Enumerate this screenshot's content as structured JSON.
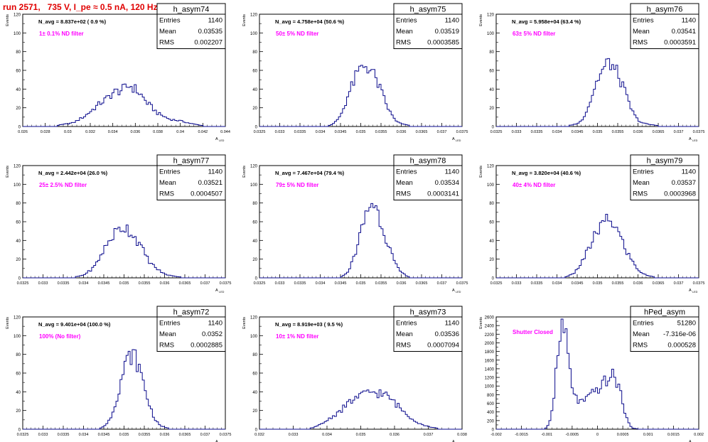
{
  "page": {
    "title": "run 2571,   735 V, I_pe ≈ 0.5 nA, 120 Hz"
  },
  "stat_labels": {
    "entries": "Entries",
    "mean": "Mean",
    "rms": "RMS"
  },
  "y_axis_label": "Events",
  "x_axis_label": "A",
  "x_axis_sub": "LED",
  "colors": {
    "histogram": "#0a0a8c",
    "annotation": "#ff00ff",
    "title": "#e00000",
    "frame": "#000000"
  },
  "chart_data": [
    {
      "type": "bar",
      "name": "h_asym74",
      "navg": "N_avg = 8.837e+02 ( 0.9 %)",
      "filter": "1± 0.1% ND filter",
      "stats": {
        "entries": "1140",
        "mean": "0.03535",
        "rms": "0.002207"
      },
      "xlim": [
        0.026,
        0.044
      ],
      "ylim": [
        0,
        120
      ],
      "xticks": [
        "0.026",
        "0.028",
        "0.03",
        "0.032",
        "0.034",
        "0.036",
        "0.038",
        "0.04",
        "0.042",
        "0.044"
      ],
      "yticks": [
        "0",
        "20",
        "40",
        "60",
        "80",
        "100",
        "120"
      ],
      "peak": {
        "center": 0.0355,
        "sigma": 0.0022,
        "height": 43
      },
      "shape": [
        [
          0.029,
          1
        ],
        [
          0.0305,
          4
        ],
        [
          0.0315,
          11
        ],
        [
          0.032,
          16
        ],
        [
          0.0325,
          21
        ],
        [
          0.033,
          26
        ],
        [
          0.0335,
          30
        ],
        [
          0.034,
          36
        ],
        [
          0.0345,
          38
        ],
        [
          0.035,
          40
        ],
        [
          0.0355,
          44
        ],
        [
          0.036,
          40
        ],
        [
          0.0365,
          34
        ],
        [
          0.037,
          26
        ],
        [
          0.0375,
          20
        ],
        [
          0.038,
          14
        ],
        [
          0.0385,
          11
        ],
        [
          0.039,
          8
        ],
        [
          0.04,
          6
        ],
        [
          0.041,
          3
        ],
        [
          0.042,
          1
        ]
      ]
    },
    {
      "type": "bar",
      "name": "h_asym75",
      "navg": "N_avg = 4.758e+04 (50.6 %)",
      "filter": "50± 5% ND filter",
      "stats": {
        "entries": "1140",
        "mean": "0.03519",
        "rms": "0.0003585"
      },
      "xlim": [
        0.0325,
        0.0375
      ],
      "ylim": [
        0,
        120
      ],
      "xticks": [
        "0.0325",
        "0.033",
        "0.0335",
        "0.034",
        "0.0345",
        "0.035",
        "0.0355",
        "0.036",
        "0.0365",
        "0.037",
        "0.0375"
      ],
      "yticks": [
        "0",
        "20",
        "40",
        "60",
        "80",
        "100",
        "120"
      ],
      "shape": [
        [
          0.0342,
          1
        ],
        [
          0.0343,
          2
        ],
        [
          0.0344,
          6
        ],
        [
          0.0345,
          12
        ],
        [
          0.0346,
          22
        ],
        [
          0.0347,
          35
        ],
        [
          0.0348,
          45
        ],
        [
          0.0349,
          55
        ],
        [
          0.035,
          62
        ],
        [
          0.0351,
          66
        ],
        [
          0.0352,
          63
        ],
        [
          0.0353,
          57
        ],
        [
          0.0354,
          48
        ],
        [
          0.0355,
          38
        ],
        [
          0.0356,
          27
        ],
        [
          0.0357,
          17
        ],
        [
          0.0358,
          10
        ],
        [
          0.0359,
          5
        ],
        [
          0.036,
          3
        ],
        [
          0.0362,
          1
        ]
      ]
    },
    {
      "type": "bar",
      "name": "h_asym76",
      "navg": "N_avg = 5.958e+04 (63.4 %)",
      "filter": "63± 5% ND filter",
      "stats": {
        "entries": "1140",
        "mean": "0.03541",
        "rms": "0.0003591"
      },
      "xlim": [
        0.0325,
        0.0375
      ],
      "ylim": [
        0,
        120
      ],
      "xticks": [
        "0.0325",
        "0.033",
        "0.0335",
        "0.034",
        "0.0345",
        "0.035",
        "0.0355",
        "0.036",
        "0.0365",
        "0.037",
        "0.0375"
      ],
      "yticks": [
        "0",
        "20",
        "40",
        "60",
        "80",
        "100",
        "120"
      ],
      "shape": [
        [
          0.0343,
          1
        ],
        [
          0.0345,
          3
        ],
        [
          0.0346,
          6
        ],
        [
          0.0347,
          14
        ],
        [
          0.0348,
          24
        ],
        [
          0.0349,
          38
        ],
        [
          0.035,
          50
        ],
        [
          0.0351,
          58
        ],
        [
          0.0352,
          64
        ],
        [
          0.0353,
          70
        ],
        [
          0.0354,
          62
        ],
        [
          0.0355,
          56
        ],
        [
          0.0356,
          46
        ],
        [
          0.0357,
          34
        ],
        [
          0.0358,
          22
        ],
        [
          0.0359,
          13
        ],
        [
          0.036,
          7
        ],
        [
          0.0361,
          4
        ],
        [
          0.0363,
          2
        ],
        [
          0.0365,
          1
        ]
      ]
    },
    {
      "type": "bar",
      "name": "h_asym77",
      "navg": "N_avg = 2.442e+04 (26.0 %)",
      "filter": "25± 2.5% ND filter",
      "stats": {
        "entries": "1140",
        "mean": "0.03521",
        "rms": "0.0004507"
      },
      "xlim": [
        0.0325,
        0.0375
      ],
      "ylim": [
        0,
        120
      ],
      "xticks": [
        "0.0325",
        "0.033",
        "0.0335",
        "0.034",
        "0.0345",
        "0.035",
        "0.0355",
        "0.036",
        "0.0365",
        "0.037",
        "0.0375"
      ],
      "yticks": [
        "0",
        "20",
        "40",
        "60",
        "80",
        "100",
        "120"
      ],
      "shape": [
        [
          0.0338,
          1
        ],
        [
          0.034,
          3
        ],
        [
          0.0341,
          6
        ],
        [
          0.0342,
          9
        ],
        [
          0.0343,
          14
        ],
        [
          0.0344,
          22
        ],
        [
          0.0345,
          30
        ],
        [
          0.0346,
          37
        ],
        [
          0.0347,
          44
        ],
        [
          0.0348,
          49
        ],
        [
          0.0349,
          52
        ],
        [
          0.035,
          55
        ],
        [
          0.0351,
          52
        ],
        [
          0.0352,
          47
        ],
        [
          0.0353,
          42
        ],
        [
          0.0354,
          34
        ],
        [
          0.0355,
          27
        ],
        [
          0.0356,
          19
        ],
        [
          0.0357,
          14
        ],
        [
          0.0358,
          10
        ],
        [
          0.0359,
          7
        ],
        [
          0.036,
          4
        ],
        [
          0.0361,
          3
        ],
        [
          0.0362,
          2
        ],
        [
          0.0364,
          1
        ]
      ]
    },
    {
      "type": "bar",
      "name": "h_asym78",
      "navg": "N_avg = 7.467e+04 (79.4 %)",
      "filter": "79± 5% ND filter",
      "stats": {
        "entries": "1140",
        "mean": "0.03534",
        "rms": "0.0003141"
      },
      "xlim": [
        0.0325,
        0.0375
      ],
      "ylim": [
        0,
        120
      ],
      "xticks": [
        "0.0325",
        "0.033",
        "0.0335",
        "0.034",
        "0.0345",
        "0.035",
        "0.0355",
        "0.036",
        "0.0365",
        "0.037",
        "0.0375"
      ],
      "yticks": [
        "0",
        "20",
        "40",
        "60",
        "80",
        "100",
        "120"
      ],
      "shape": [
        [
          0.0345,
          1
        ],
        [
          0.0346,
          3
        ],
        [
          0.0347,
          8
        ],
        [
          0.0348,
          18
        ],
        [
          0.0349,
          32
        ],
        [
          0.035,
          48
        ],
        [
          0.0351,
          64
        ],
        [
          0.0352,
          76
        ],
        [
          0.0353,
          82
        ],
        [
          0.0354,
          72
        ],
        [
          0.0355,
          60
        ],
        [
          0.0356,
          46
        ],
        [
          0.0357,
          34
        ],
        [
          0.0358,
          20
        ],
        [
          0.0359,
          11
        ],
        [
          0.036,
          6
        ],
        [
          0.0361,
          3
        ],
        [
          0.0362,
          1
        ]
      ]
    },
    {
      "type": "bar",
      "name": "h_asym79",
      "navg": "N_avg = 3.820e+04 (40.6 %)",
      "filter": "40± 4% ND filter",
      "stats": {
        "entries": "1140",
        "mean": "0.03537",
        "rms": "0.0003968"
      },
      "xlim": [
        0.0325,
        0.0375
      ],
      "ylim": [
        0,
        120
      ],
      "xticks": [
        "0.0325",
        "0.033",
        "0.0335",
        "0.034",
        "0.0345",
        "0.035",
        "0.0355",
        "0.036",
        "0.0365",
        "0.037",
        "0.0375"
      ],
      "yticks": [
        "0",
        "20",
        "40",
        "60",
        "80",
        "100",
        "120"
      ],
      "shape": [
        [
          0.0342,
          1
        ],
        [
          0.0344,
          4
        ],
        [
          0.0345,
          9
        ],
        [
          0.0346,
          16
        ],
        [
          0.0347,
          24
        ],
        [
          0.0348,
          32
        ],
        [
          0.0349,
          42
        ],
        [
          0.035,
          50
        ],
        [
          0.0351,
          56
        ],
        [
          0.0352,
          60
        ],
        [
          0.0353,
          62
        ],
        [
          0.0354,
          58
        ],
        [
          0.0355,
          50
        ],
        [
          0.0356,
          40
        ],
        [
          0.0357,
          30
        ],
        [
          0.0358,
          22
        ],
        [
          0.0359,
          15
        ],
        [
          0.036,
          9
        ],
        [
          0.0361,
          5
        ],
        [
          0.0362,
          3
        ],
        [
          0.0364,
          1
        ]
      ]
    },
    {
      "type": "bar",
      "name": "h_asym72",
      "navg": "N_avg = 9.401e+04 (100.0 %)",
      "filter": "100% (No filter)",
      "stats": {
        "entries": "1140",
        "mean": "0.0352",
        "rms": "0.0002885"
      },
      "xlim": [
        0.0325,
        0.0375
      ],
      "ylim": [
        0,
        120
      ],
      "xticks": [
        "0.0325",
        "0.033",
        "0.0335",
        "0.034",
        "0.0345",
        "0.035",
        "0.0355",
        "0.036",
        "0.0365",
        "0.037",
        "0.0375"
      ],
      "yticks": [
        "0",
        "20",
        "40",
        "60",
        "80",
        "100",
        "120"
      ],
      "shape": [
        [
          0.0344,
          1
        ],
        [
          0.0345,
          3
        ],
        [
          0.0346,
          7
        ],
        [
          0.0347,
          16
        ],
        [
          0.0348,
          30
        ],
        [
          0.0349,
          48
        ],
        [
          0.035,
          64
        ],
        [
          0.0351,
          76
        ],
        [
          0.0352,
          80
        ],
        [
          0.0353,
          74
        ],
        [
          0.0354,
          62
        ],
        [
          0.0355,
          46
        ],
        [
          0.0356,
          30
        ],
        [
          0.0357,
          17
        ],
        [
          0.0358,
          8
        ],
        [
          0.0359,
          4
        ],
        [
          0.036,
          2
        ],
        [
          0.0361,
          1
        ]
      ]
    },
    {
      "type": "bar",
      "name": "h_asym73",
      "navg": "N_avg = 8.919e+03 ( 9.5 %)",
      "filter": "10± 1% ND filter",
      "stats": {
        "entries": "1140",
        "mean": "0.03536",
        "rms": "0.0007094"
      },
      "xlim": [
        0.032,
        0.038
      ],
      "ylim": [
        0,
        120
      ],
      "xticks": [
        "0.032",
        "0.033",
        "0.034",
        "0.035",
        "0.036",
        "0.037",
        "0.038"
      ],
      "yticks": [
        "0",
        "20",
        "40",
        "60",
        "80",
        "100",
        "120"
      ],
      "shape": [
        [
          0.0335,
          1
        ],
        [
          0.0337,
          3
        ],
        [
          0.0339,
          7
        ],
        [
          0.0341,
          12
        ],
        [
          0.0343,
          17
        ],
        [
          0.0345,
          23
        ],
        [
          0.0347,
          30
        ],
        [
          0.0349,
          34
        ],
        [
          0.0351,
          37
        ],
        [
          0.0353,
          40
        ],
        [
          0.0355,
          39
        ],
        [
          0.0357,
          37
        ],
        [
          0.0359,
          32
        ],
        [
          0.0361,
          25
        ],
        [
          0.0363,
          18
        ],
        [
          0.0365,
          12
        ],
        [
          0.0367,
          7
        ],
        [
          0.0369,
          4
        ],
        [
          0.0371,
          2
        ],
        [
          0.0373,
          1
        ]
      ]
    },
    {
      "type": "bar",
      "name": "hPed_asym",
      "navg": "",
      "filter": "Shutter Closed",
      "stats": {
        "entries": "51280",
        "mean": "-7.316e-06",
        "rms": "0.000528"
      },
      "xlim": [
        -0.002,
        0.002
      ],
      "ylim": [
        0,
        2600
      ],
      "xticks": [
        "-0.002",
        "-0.0015",
        "-0.001",
        "-0.0005",
        "0",
        "0.0005",
        "0.001",
        "0.0015",
        "0.002"
      ],
      "yticks": [
        "0",
        "200",
        "400",
        "600",
        "800",
        "1000",
        "1200",
        "1400",
        "1600",
        "1800",
        "2000",
        "2200",
        "2400",
        "2600"
      ],
      "shape": [
        [
          -0.00105,
          10
        ],
        [
          -0.001,
          40
        ],
        [
          -0.00095,
          150
        ],
        [
          -0.0009,
          420
        ],
        [
          -0.00085,
          900
        ],
        [
          -0.0008,
          1500
        ],
        [
          -0.00075,
          2050
        ],
        [
          -0.0007,
          2380
        ],
        [
          -0.00065,
          2300
        ],
        [
          -0.0006,
          1900
        ],
        [
          -0.00055,
          1400
        ],
        [
          -0.0005,
          1000
        ],
        [
          -0.00045,
          780
        ],
        [
          -0.0004,
          680
        ],
        [
          -0.00035,
          640
        ],
        [
          -0.0003,
          640
        ],
        [
          -0.00025,
          660
        ],
        [
          -0.0002,
          700
        ],
        [
          -0.00015,
          760
        ],
        [
          -0.0001,
          820
        ],
        [
          -5e-05,
          880
        ],
        [
          0,
          930
        ],
        [
          5e-05,
          980
        ],
        [
          0.0001,
          1040
        ],
        [
          0.00015,
          1100
        ],
        [
          0.0002,
          1160
        ],
        [
          0.00025,
          1200
        ],
        [
          0.0003,
          1230
        ],
        [
          0.00035,
          1180
        ],
        [
          0.0004,
          1050
        ],
        [
          0.00045,
          860
        ],
        [
          0.0005,
          620
        ],
        [
          0.00055,
          380
        ],
        [
          0.0006,
          180
        ],
        [
          0.00065,
          70
        ],
        [
          0.0007,
          25
        ],
        [
          0.0008,
          5
        ]
      ]
    }
  ]
}
